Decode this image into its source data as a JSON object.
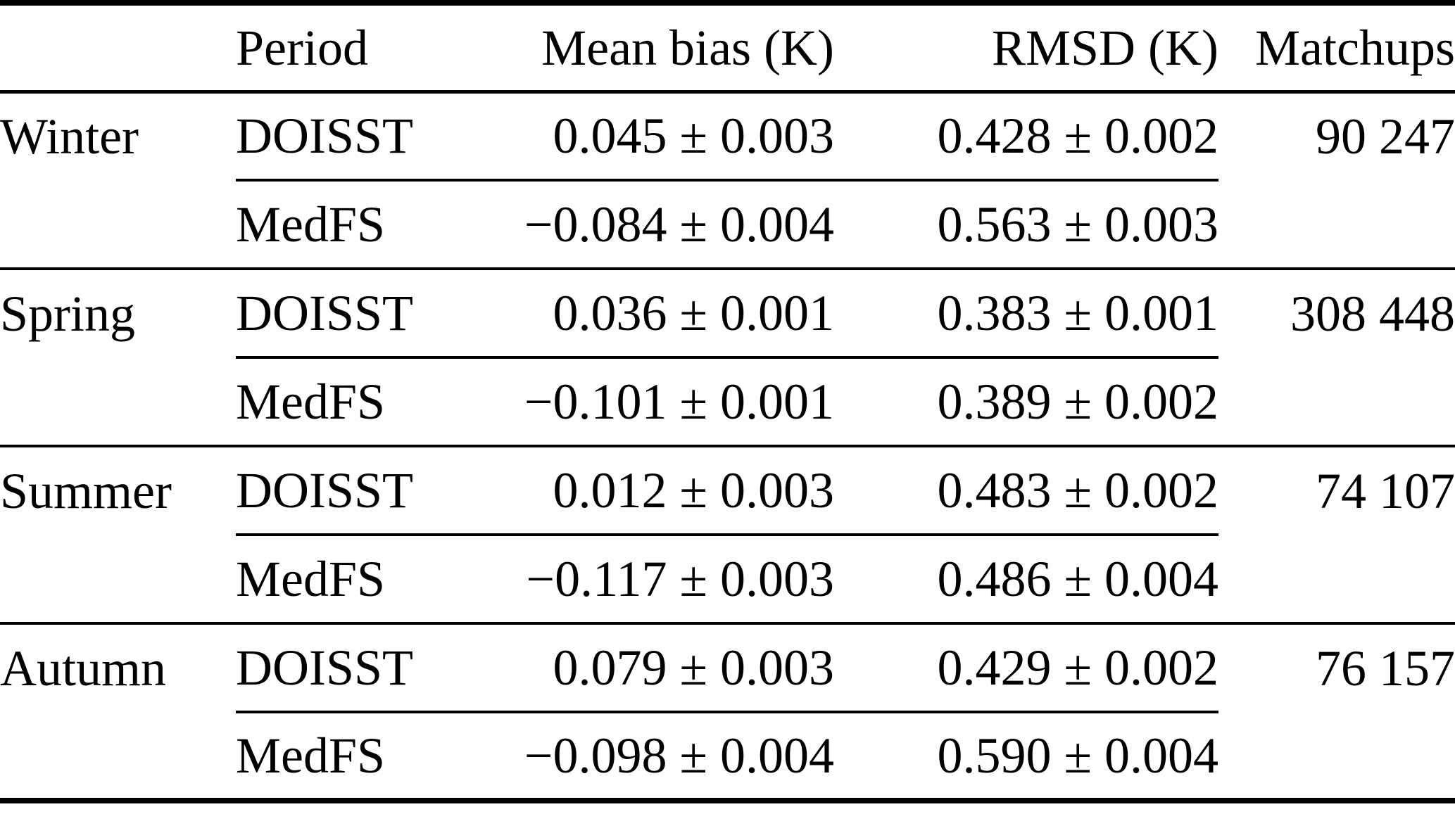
{
  "table": {
    "headers": {
      "season": "",
      "period": "Period",
      "mean_bias": "Mean bias (K)",
      "rmsd": "RMSD (K)",
      "matchups": "Matchups"
    },
    "groups": [
      {
        "season": "Winter",
        "matchups": "90 247",
        "rows": [
          {
            "period": "DOISST",
            "mean_bias": "0.045 ± 0.003",
            "rmsd": "0.428 ± 0.002"
          },
          {
            "period": "MedFS",
            "mean_bias": "−0.084 ± 0.004",
            "rmsd": "0.563 ± 0.003"
          }
        ]
      },
      {
        "season": "Spring",
        "matchups": "308 448",
        "rows": [
          {
            "period": "DOISST",
            "mean_bias": "0.036 ± 0.001",
            "rmsd": "0.383 ± 0.001"
          },
          {
            "period": "MedFS",
            "mean_bias": "−0.101 ± 0.001",
            "rmsd": "0.389 ± 0.002"
          }
        ]
      },
      {
        "season": "Summer",
        "matchups": "74 107",
        "rows": [
          {
            "period": "DOISST",
            "mean_bias": "0.012 ± 0.003",
            "rmsd": "0.483 ± 0.002"
          },
          {
            "period": "MedFS",
            "mean_bias": "−0.117 ± 0.003",
            "rmsd": "0.486 ± 0.004"
          }
        ]
      },
      {
        "season": "Autumn",
        "matchups": "76 157",
        "rows": [
          {
            "period": "DOISST",
            "mean_bias": "0.079 ± 0.003",
            "rmsd": "0.429 ± 0.002"
          },
          {
            "period": "MedFS",
            "mean_bias": "−0.098 ± 0.004",
            "rmsd": "0.590 ± 0.004"
          }
        ]
      }
    ]
  },
  "colors": {
    "text": "#000000",
    "rules": "#000000",
    "background": "#ffffff"
  }
}
